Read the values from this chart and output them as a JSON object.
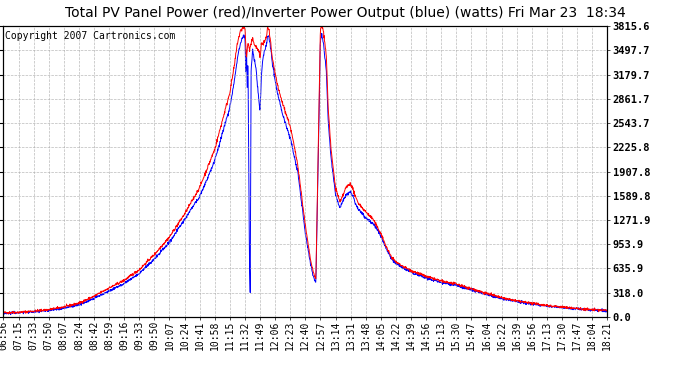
{
  "title": "Total PV Panel Power (red)/Inverter Power Output (blue) (watts) Fri Mar 23  18:34",
  "copyright": "Copyright 2007 Cartronics.com",
  "background_color": "#ffffff",
  "plot_bg_color": "#ffffff",
  "grid_color": "#aaaaaa",
  "x_tick_labels": [
    "06:56",
    "07:15",
    "07:33",
    "07:50",
    "08:07",
    "08:24",
    "08:42",
    "08:59",
    "09:16",
    "09:33",
    "09:50",
    "10:07",
    "10:24",
    "10:41",
    "10:58",
    "11:15",
    "11:32",
    "11:49",
    "12:06",
    "12:23",
    "12:40",
    "12:57",
    "13:14",
    "13:31",
    "13:48",
    "14:05",
    "14:22",
    "14:39",
    "14:56",
    "15:13",
    "15:30",
    "15:47",
    "16:04",
    "16:22",
    "16:39",
    "16:56",
    "17:13",
    "17:30",
    "17:47",
    "18:04",
    "18:21"
  ],
  "y_tick_values": [
    0.0,
    318.0,
    635.9,
    953.9,
    1271.9,
    1589.8,
    1907.8,
    2225.8,
    2543.7,
    2861.7,
    3179.7,
    3497.7,
    3815.6
  ],
  "ymax": 3815.6,
  "ymin": 0.0,
  "red_line_color": "#ff0000",
  "blue_line_color": "#0000ff",
  "title_fontsize": 10,
  "tick_fontsize": 7,
  "copyright_fontsize": 7,
  "red_waypoints": [
    [
      0,
      55
    ],
    [
      1,
      60
    ],
    [
      2,
      75
    ],
    [
      3,
      95
    ],
    [
      4,
      130
    ],
    [
      5,
      180
    ],
    [
      6,
      270
    ],
    [
      7,
      380
    ],
    [
      8,
      480
    ],
    [
      9,
      620
    ],
    [
      10,
      820
    ],
    [
      11,
      1050
    ],
    [
      12,
      1350
    ],
    [
      13,
      1700
    ],
    [
      14,
      2200
    ],
    [
      15,
      2950
    ],
    [
      15.3,
      3300
    ],
    [
      15.5,
      3600
    ],
    [
      15.7,
      3750
    ],
    [
      15.9,
      3810
    ],
    [
      16.0,
      3780
    ],
    [
      16.1,
      3400
    ],
    [
      16.2,
      3600
    ],
    [
      16.3,
      3500
    ],
    [
      16.5,
      3650
    ],
    [
      16.7,
      3550
    ],
    [
      16.9,
      3500
    ],
    [
      17.0,
      3400
    ],
    [
      17.1,
      3600
    ],
    [
      17.2,
      3580
    ],
    [
      17.4,
      3650
    ],
    [
      17.5,
      3810
    ],
    [
      17.6,
      3750
    ],
    [
      17.7,
      3600
    ],
    [
      17.8,
      3400
    ],
    [
      18.0,
      3200
    ],
    [
      18.2,
      3000
    ],
    [
      18.5,
      2800
    ],
    [
      19.0,
      2500
    ],
    [
      19.5,
      2000
    ],
    [
      20.0,
      1200
    ],
    [
      20.3,
      800
    ],
    [
      20.5,
      600
    ],
    [
      20.7,
      500
    ],
    [
      21.0,
      3780
    ],
    [
      21.1,
      3810
    ],
    [
      21.2,
      3750
    ],
    [
      21.3,
      3600
    ],
    [
      21.4,
      3400
    ],
    [
      21.5,
      2800
    ],
    [
      21.7,
      2200
    ],
    [
      22.0,
      1700
    ],
    [
      22.3,
      1500
    ],
    [
      22.5,
      1600
    ],
    [
      22.7,
      1700
    ],
    [
      23.0,
      1750
    ],
    [
      23.2,
      1650
    ],
    [
      23.3,
      1580
    ],
    [
      23.5,
      1500
    ],
    [
      23.7,
      1450
    ],
    [
      24.0,
      1380
    ],
    [
      24.3,
      1320
    ],
    [
      24.5,
      1280
    ],
    [
      24.7,
      1200
    ],
    [
      25.0,
      1100
    ],
    [
      25.3,
      950
    ],
    [
      25.5,
      860
    ],
    [
      25.7,
      790
    ],
    [
      26.0,
      720
    ],
    [
      26.5,
      660
    ],
    [
      27.0,
      610
    ],
    [
      27.5,
      570
    ],
    [
      28.0,
      530
    ],
    [
      28.5,
      500
    ],
    [
      29.0,
      470
    ],
    [
      29.5,
      450
    ],
    [
      30.0,
      430
    ],
    [
      30.5,
      400
    ],
    [
      31.0,
      370
    ],
    [
      31.5,
      340
    ],
    [
      32.0,
      310
    ],
    [
      32.5,
      280
    ],
    [
      33.0,
      250
    ],
    [
      33.5,
      230
    ],
    [
      34.0,
      210
    ],
    [
      34.5,
      195
    ],
    [
      35.0,
      180
    ],
    [
      35.5,
      165
    ],
    [
      36.0,
      150
    ],
    [
      36.5,
      140
    ],
    [
      37.0,
      130
    ],
    [
      37.5,
      120
    ],
    [
      38.0,
      110
    ],
    [
      38.5,
      100
    ],
    [
      39.0,
      95
    ],
    [
      39.5,
      90
    ],
    [
      40.0,
      85
    ]
  ],
  "blue_waypoints": [
    [
      0,
      50
    ],
    [
      1,
      55
    ],
    [
      2,
      68
    ],
    [
      3,
      85
    ],
    [
      4,
      115
    ],
    [
      5,
      160
    ],
    [
      6,
      240
    ],
    [
      7,
      340
    ],
    [
      8,
      440
    ],
    [
      9,
      570
    ],
    [
      10,
      760
    ],
    [
      11,
      980
    ],
    [
      12,
      1280
    ],
    [
      13,
      1580
    ],
    [
      14,
      2050
    ],
    [
      15,
      2750
    ],
    [
      15.3,
      3100
    ],
    [
      15.5,
      3400
    ],
    [
      15.7,
      3600
    ],
    [
      15.9,
      3700
    ],
    [
      16.0,
      3680
    ],
    [
      16.05,
      3200
    ],
    [
      16.1,
      3600
    ],
    [
      16.15,
      3000
    ],
    [
      16.2,
      3400
    ],
    [
      16.25,
      2000
    ],
    [
      16.3,
      700
    ],
    [
      16.35,
      300
    ],
    [
      16.4,
      3200
    ],
    [
      16.5,
      3500
    ],
    [
      16.6,
      3400
    ],
    [
      16.7,
      3300
    ],
    [
      16.8,
      3100
    ],
    [
      16.9,
      2900
    ],
    [
      17.0,
      2700
    ],
    [
      17.1,
      3200
    ],
    [
      17.2,
      3400
    ],
    [
      17.3,
      3500
    ],
    [
      17.4,
      3550
    ],
    [
      17.5,
      3700
    ],
    [
      17.6,
      3680
    ],
    [
      17.7,
      3550
    ],
    [
      17.8,
      3350
    ],
    [
      18.0,
      3100
    ],
    [
      18.2,
      2900
    ],
    [
      18.5,
      2650
    ],
    [
      19.0,
      2350
    ],
    [
      19.5,
      1900
    ],
    [
      20.0,
      1100
    ],
    [
      20.3,
      750
    ],
    [
      20.5,
      550
    ],
    [
      20.7,
      450
    ],
    [
      21.0,
      3650
    ],
    [
      21.1,
      3700
    ],
    [
      21.2,
      3600
    ],
    [
      21.3,
      3400
    ],
    [
      21.4,
      3200
    ],
    [
      21.5,
      2600
    ],
    [
      21.7,
      2100
    ],
    [
      22.0,
      1600
    ],
    [
      22.3,
      1430
    ],
    [
      22.5,
      1530
    ],
    [
      22.7,
      1600
    ],
    [
      23.0,
      1650
    ],
    [
      23.2,
      1570
    ],
    [
      23.3,
      1500
    ],
    [
      23.5,
      1420
    ],
    [
      23.7,
      1370
    ],
    [
      24.0,
      1300
    ],
    [
      24.3,
      1250
    ],
    [
      24.5,
      1220
    ],
    [
      24.7,
      1170
    ],
    [
      25.0,
      1060
    ],
    [
      25.3,
      920
    ],
    [
      25.5,
      840
    ],
    [
      25.7,
      770
    ],
    [
      26.0,
      700
    ],
    [
      26.5,
      640
    ],
    [
      27.0,
      590
    ],
    [
      27.5,
      550
    ],
    [
      28.0,
      510
    ],
    [
      28.5,
      480
    ],
    [
      29.0,
      455
    ],
    [
      29.5,
      435
    ],
    [
      30.0,
      415
    ],
    [
      30.5,
      385
    ],
    [
      31.0,
      355
    ],
    [
      31.5,
      325
    ],
    [
      32.0,
      295
    ],
    [
      32.5,
      265
    ],
    [
      33.0,
      240
    ],
    [
      33.5,
      220
    ],
    [
      34.0,
      200
    ],
    [
      34.5,
      185
    ],
    [
      35.0,
      170
    ],
    [
      35.5,
      158
    ],
    [
      36.0,
      145
    ],
    [
      36.5,
      135
    ],
    [
      37.0,
      125
    ],
    [
      37.5,
      115
    ],
    [
      38.0,
      106
    ],
    [
      38.5,
      97
    ],
    [
      39.0,
      90
    ],
    [
      39.5,
      85
    ],
    [
      40.0,
      80
    ]
  ]
}
